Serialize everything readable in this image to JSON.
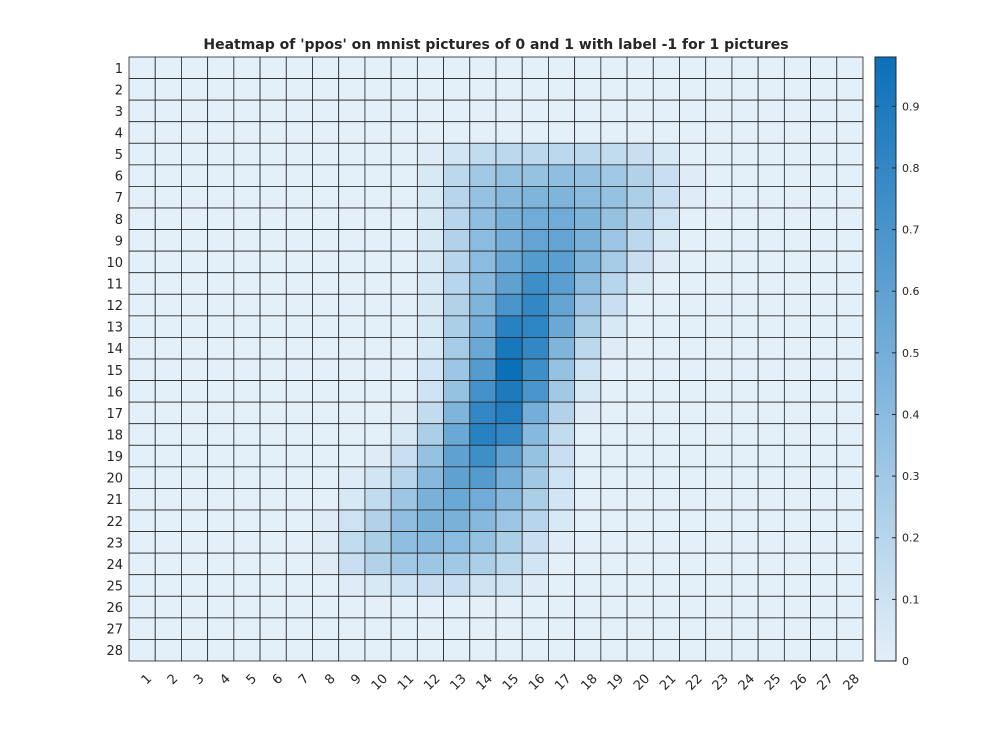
{
  "chart_data": {
    "type": "heatmap",
    "title": "Heatmap of 'ppos' on mnist pictures of 0 and 1 with label -1 for 1 pictures",
    "xlabel": "",
    "ylabel": "",
    "x_labels": [
      "1",
      "2",
      "3",
      "4",
      "5",
      "6",
      "7",
      "8",
      "9",
      "10",
      "11",
      "12",
      "13",
      "14",
      "15",
      "16",
      "17",
      "18",
      "19",
      "20",
      "21",
      "22",
      "23",
      "24",
      "25",
      "26",
      "27",
      "28"
    ],
    "y_labels": [
      "1",
      "2",
      "3",
      "4",
      "5",
      "6",
      "7",
      "8",
      "9",
      "10",
      "11",
      "12",
      "13",
      "14",
      "15",
      "16",
      "17",
      "18",
      "19",
      "20",
      "21",
      "22",
      "23",
      "24",
      "25",
      "26",
      "27",
      "28"
    ],
    "colorbar": {
      "range": [
        0,
        0.98
      ],
      "ticks": [
        "0",
        "0.1",
        "0.2",
        "0.3",
        "0.4",
        "0.5",
        "0.6",
        "0.7",
        "0.8",
        "0.9"
      ]
    },
    "colormap": {
      "low": "#e3eff9",
      "high": "#0b70b8"
    },
    "grid_color": "#262626",
    "values": [
      [
        0,
        0,
        0,
        0,
        0,
        0,
        0,
        0,
        0,
        0,
        0,
        0,
        0,
        0,
        0,
        0,
        0,
        0,
        0,
        0,
        0,
        0,
        0,
        0,
        0,
        0,
        0,
        0
      ],
      [
        0,
        0,
        0,
        0,
        0,
        0,
        0,
        0,
        0,
        0,
        0,
        0,
        0,
        0,
        0,
        0,
        0,
        0,
        0,
        0,
        0,
        0,
        0,
        0,
        0,
        0,
        0,
        0
      ],
      [
        0,
        0,
        0,
        0,
        0,
        0,
        0,
        0,
        0,
        0,
        0,
        0,
        0,
        0,
        0,
        0,
        0,
        0,
        0,
        0,
        0,
        0,
        0,
        0,
        0,
        0,
        0,
        0
      ],
      [
        0,
        0,
        0,
        0,
        0,
        0,
        0,
        0,
        0,
        0,
        0,
        0,
        0,
        0,
        0,
        0,
        0,
        0,
        0,
        0,
        0,
        0,
        0,
        0,
        0,
        0,
        0,
        0
      ],
      [
        0,
        0,
        0,
        0,
        0,
        0,
        0,
        0,
        0,
        0,
        0,
        0.02,
        0.08,
        0.15,
        0.18,
        0.18,
        0.18,
        0.18,
        0.15,
        0.12,
        0.05,
        0,
        0,
        0,
        0,
        0,
        0,
        0
      ],
      [
        0,
        0,
        0,
        0,
        0,
        0,
        0,
        0,
        0,
        0,
        0,
        0.05,
        0.18,
        0.3,
        0.35,
        0.35,
        0.38,
        0.35,
        0.3,
        0.22,
        0.12,
        0.02,
        0,
        0,
        0,
        0,
        0,
        0
      ],
      [
        0,
        0,
        0,
        0,
        0,
        0,
        0,
        0,
        0,
        0,
        0,
        0.05,
        0.2,
        0.35,
        0.42,
        0.45,
        0.45,
        0.4,
        0.35,
        0.25,
        0.12,
        0.02,
        0,
        0,
        0,
        0,
        0,
        0
      ],
      [
        0,
        0,
        0,
        0,
        0,
        0,
        0,
        0,
        0,
        0,
        0,
        0.05,
        0.2,
        0.38,
        0.48,
        0.52,
        0.52,
        0.45,
        0.35,
        0.22,
        0.1,
        0,
        0,
        0,
        0,
        0,
        0,
        0
      ],
      [
        0,
        0,
        0,
        0,
        0,
        0,
        0,
        0,
        0,
        0,
        0,
        0.05,
        0.22,
        0.4,
        0.5,
        0.58,
        0.58,
        0.48,
        0.32,
        0.18,
        0.05,
        0,
        0,
        0,
        0,
        0,
        0,
        0
      ],
      [
        0,
        0,
        0,
        0,
        0,
        0,
        0,
        0,
        0,
        0,
        0,
        0.05,
        0.2,
        0.4,
        0.55,
        0.65,
        0.62,
        0.45,
        0.28,
        0.12,
        0.02,
        0,
        0,
        0,
        0,
        0,
        0,
        0
      ],
      [
        0,
        0,
        0,
        0,
        0,
        0,
        0,
        0,
        0,
        0,
        0,
        0.05,
        0.2,
        0.42,
        0.6,
        0.75,
        0.62,
        0.4,
        0.2,
        0.05,
        0,
        0,
        0,
        0,
        0,
        0,
        0,
        0
      ],
      [
        0,
        0,
        0,
        0,
        0,
        0,
        0,
        0,
        0,
        0,
        0,
        0.05,
        0.22,
        0.45,
        0.7,
        0.8,
        0.58,
        0.32,
        0.12,
        0,
        0,
        0,
        0,
        0,
        0,
        0,
        0,
        0
      ],
      [
        0,
        0,
        0,
        0,
        0,
        0,
        0,
        0,
        0,
        0,
        0,
        0.05,
        0.25,
        0.5,
        0.85,
        0.82,
        0.55,
        0.25,
        0.05,
        0,
        0,
        0,
        0,
        0,
        0,
        0,
        0,
        0
      ],
      [
        0,
        0,
        0,
        0,
        0,
        0,
        0,
        0,
        0,
        0,
        0,
        0.05,
        0.28,
        0.55,
        0.92,
        0.8,
        0.45,
        0.18,
        0.02,
        0,
        0,
        0,
        0,
        0,
        0,
        0,
        0,
        0
      ],
      [
        0,
        0,
        0,
        0,
        0,
        0,
        0,
        0,
        0,
        0,
        0,
        0.08,
        0.32,
        0.65,
        0.98,
        0.75,
        0.35,
        0.1,
        0,
        0,
        0,
        0,
        0,
        0,
        0,
        0,
        0,
        0
      ],
      [
        0,
        0,
        0,
        0,
        0,
        0,
        0,
        0,
        0,
        0,
        0,
        0.1,
        0.35,
        0.72,
        0.9,
        0.7,
        0.3,
        0.05,
        0,
        0,
        0,
        0,
        0,
        0,
        0,
        0,
        0,
        0
      ],
      [
        0,
        0,
        0,
        0,
        0,
        0,
        0,
        0,
        0,
        0,
        0.02,
        0.15,
        0.45,
        0.8,
        0.88,
        0.5,
        0.22,
        0.02,
        0,
        0,
        0,
        0,
        0,
        0,
        0,
        0,
        0,
        0
      ],
      [
        0,
        0,
        0,
        0,
        0,
        0,
        0,
        0,
        0,
        0,
        0.05,
        0.25,
        0.55,
        0.85,
        0.8,
        0.42,
        0.15,
        0,
        0,
        0,
        0,
        0,
        0,
        0,
        0,
        0,
        0,
        0
      ],
      [
        0,
        0,
        0,
        0,
        0,
        0,
        0,
        0,
        0,
        0.02,
        0.12,
        0.35,
        0.6,
        0.75,
        0.6,
        0.35,
        0.12,
        0,
        0,
        0,
        0,
        0,
        0,
        0,
        0,
        0,
        0,
        0
      ],
      [
        0,
        0,
        0,
        0,
        0,
        0,
        0,
        0,
        0.02,
        0.08,
        0.2,
        0.42,
        0.6,
        0.65,
        0.5,
        0.3,
        0.1,
        0,
        0,
        0,
        0,
        0,
        0,
        0,
        0,
        0,
        0,
        0
      ],
      [
        0,
        0,
        0,
        0,
        0,
        0,
        0,
        0,
        0.05,
        0.15,
        0.32,
        0.48,
        0.55,
        0.52,
        0.42,
        0.25,
        0.08,
        0,
        0,
        0,
        0,
        0,
        0,
        0,
        0,
        0,
        0,
        0
      ],
      [
        0,
        0,
        0,
        0,
        0,
        0,
        0,
        0.02,
        0.1,
        0.22,
        0.38,
        0.48,
        0.48,
        0.42,
        0.32,
        0.2,
        0.05,
        0,
        0,
        0,
        0,
        0,
        0,
        0,
        0,
        0,
        0,
        0
      ],
      [
        0,
        0,
        0,
        0,
        0,
        0,
        0,
        0.02,
        0.15,
        0.25,
        0.38,
        0.42,
        0.4,
        0.35,
        0.25,
        0.12,
        0.02,
        0,
        0,
        0,
        0,
        0,
        0,
        0,
        0,
        0,
        0,
        0
      ],
      [
        0,
        0,
        0,
        0,
        0,
        0,
        0,
        0.02,
        0.12,
        0.22,
        0.3,
        0.32,
        0.3,
        0.25,
        0.18,
        0.08,
        0,
        0,
        0,
        0,
        0,
        0,
        0,
        0,
        0,
        0,
        0,
        0
      ],
      [
        0,
        0,
        0,
        0,
        0,
        0,
        0,
        0,
        0.02,
        0.05,
        0.1,
        0.12,
        0.12,
        0.1,
        0.08,
        0.02,
        0,
        0,
        0,
        0,
        0,
        0,
        0,
        0,
        0,
        0,
        0,
        0
      ],
      [
        0,
        0,
        0,
        0,
        0,
        0,
        0,
        0,
        0,
        0,
        0,
        0,
        0,
        0,
        0,
        0,
        0,
        0,
        0,
        0,
        0,
        0,
        0,
        0,
        0,
        0,
        0,
        0
      ],
      [
        0,
        0,
        0,
        0,
        0,
        0,
        0,
        0,
        0,
        0,
        0,
        0,
        0,
        0,
        0,
        0,
        0,
        0,
        0,
        0,
        0,
        0,
        0,
        0,
        0,
        0,
        0,
        0
      ],
      [
        0,
        0,
        0,
        0,
        0,
        0,
        0,
        0,
        0,
        0,
        0,
        0,
        0,
        0,
        0,
        0,
        0,
        0,
        0,
        0,
        0,
        0,
        0,
        0,
        0,
        0,
        0,
        0
      ]
    ]
  }
}
